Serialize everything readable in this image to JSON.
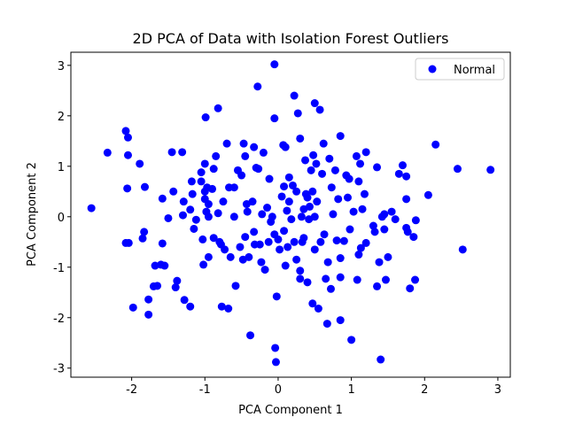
{
  "chart_data": {
    "type": "scatter",
    "title": "2D PCA of Data with Isolation Forest Outliers",
    "x_label": "PCA Component 1",
    "y_label": "PCA Component 2",
    "xlim": [
      -2.83,
      3.17
    ],
    "ylim": [
      -3.18,
      3.26
    ],
    "xticks": [
      -2,
      -1,
      0,
      1,
      2,
      3
    ],
    "yticks": [
      -3,
      -2,
      -1,
      0,
      1,
      2,
      3
    ],
    "legend": "upper right",
    "series": [
      {
        "name": "Normal",
        "color": "#0000ff",
        "x": [
          -2.55,
          -2.33,
          -2.08,
          -2.05,
          -2.05,
          -1.89,
          -2.06,
          -1.82,
          -2.08,
          -2.04,
          -1.98,
          -1.83,
          -1.85,
          -1.77,
          -1.77,
          -1.68,
          -1.7,
          -1.65,
          -1.6,
          -1.55,
          -1.58,
          -1.58,
          -1.5,
          -1.45,
          -1.43,
          -1.38,
          -1.4,
          -1.31,
          -1.3,
          -1.29,
          -1.28,
          -1.2,
          -1.2,
          -1.18,
          -1.17,
          -1.15,
          -1.12,
          -1.05,
          -1.05,
          -1.03,
          -1.02,
          -1.0,
          -1.0,
          -1.0,
          -0.99,
          -0.98,
          -0.97,
          -0.95,
          -0.95,
          -0.95,
          -0.9,
          -0.88,
          -0.88,
          -0.85,
          -0.82,
          -0.82,
          -0.8,
          -0.78,
          -0.77,
          -0.75,
          -0.73,
          -0.7,
          -0.68,
          -0.67,
          -0.65,
          -0.6,
          -0.6,
          -0.58,
          -0.55,
          -0.52,
          -0.5,
          -0.48,
          -0.47,
          -0.45,
          -0.45,
          -0.43,
          -0.42,
          -0.4,
          -0.38,
          -0.35,
          -0.33,
          -0.33,
          -0.32,
          -0.3,
          -0.28,
          -0.27,
          -0.25,
          -0.23,
          -0.22,
          -0.2,
          -0.18,
          -0.15,
          -0.13,
          -0.12,
          -0.1,
          -0.08,
          -0.05,
          -0.05,
          -0.05,
          -0.04,
          -0.03,
          -0.02,
          0.0,
          0.02,
          0.05,
          0.07,
          0.08,
          0.08,
          0.1,
          0.1,
          0.12,
          0.13,
          0.15,
          0.15,
          0.18,
          0.2,
          0.22,
          0.22,
          0.25,
          0.25,
          0.27,
          0.3,
          0.3,
          0.3,
          0.32,
          0.33,
          0.35,
          0.35,
          0.37,
          0.38,
          0.4,
          0.4,
          0.42,
          0.43,
          0.45,
          0.47,
          0.47,
          0.48,
          0.5,
          0.5,
          0.5,
          0.52,
          0.53,
          0.55,
          0.57,
          0.58,
          0.6,
          0.62,
          0.63,
          0.65,
          0.67,
          0.68,
          0.7,
          0.72,
          0.73,
          0.75,
          0.78,
          0.8,
          0.82,
          0.85,
          0.85,
          0.85,
          0.85,
          0.9,
          0.93,
          0.95,
          0.97,
          0.98,
          1.0,
          1.03,
          1.07,
          1.08,
          1.1,
          1.1,
          1.12,
          1.13,
          1.15,
          1.18,
          1.2,
          1.2,
          1.3,
          1.32,
          1.35,
          1.35,
          1.38,
          1.4,
          1.42,
          1.45,
          1.45,
          1.47,
          1.5,
          1.55,
          1.6,
          1.65,
          1.7,
          1.75,
          1.75,
          1.75,
          1.77,
          1.8,
          1.85,
          1.87,
          1.88,
          2.05,
          2.15,
          2.45,
          2.52,
          2.9
        ],
        "values": [
          0.17,
          1.27,
          1.7,
          1.57,
          1.22,
          1.05,
          0.56,
          0.59,
          -0.52,
          -0.52,
          -1.8,
          -0.3,
          -0.43,
          -1.64,
          -1.94,
          -0.97,
          -1.38,
          -1.37,
          -0.95,
          -0.97,
          -0.53,
          0.36,
          -0.03,
          1.28,
          0.5,
          -1.27,
          -1.4,
          1.28,
          0.03,
          0.3,
          -1.65,
          -1.78,
          0.14,
          0.7,
          0.45,
          -0.24,
          -0.06,
          0.88,
          0.7,
          -0.45,
          -0.95,
          0.5,
          0.35,
          1.05,
          1.97,
          0.1,
          0.58,
          -0.8,
          0.0,
          0.25,
          0.55,
          -0.42,
          0.95,
          1.2,
          2.15,
          0.07,
          -0.5,
          -0.55,
          -1.78,
          0.3,
          -0.65,
          1.45,
          -1.82,
          0.58,
          -0.8,
          0.58,
          0.0,
          -1.37,
          0.92,
          -0.6,
          0.82,
          -0.85,
          1.45,
          1.2,
          -0.4,
          0.25,
          0.1,
          -0.8,
          -2.35,
          0.3,
          -0.3,
          1.38,
          -0.55,
          0.97,
          2.58,
          0.95,
          -0.55,
          -0.9,
          0.05,
          1.27,
          -1.05,
          0.18,
          -0.5,
          0.75,
          -0.1,
          0.0,
          -0.35,
          1.95,
          3.02,
          -2.6,
          -2.88,
          -1.58,
          -0.45,
          -0.65,
          0.4,
          1.42,
          0.6,
          -0.28,
          -0.97,
          1.38,
          0.12,
          -0.6,
          0.3,
          0.78,
          -0.05,
          0.62,
          -0.5,
          2.4,
          0.5,
          -0.85,
          2.05,
          -1.07,
          -1.23,
          1.55,
          0.0,
          -0.5,
          0.15,
          -0.42,
          1.12,
          0.45,
          -1.3,
          0.38,
          -0.05,
          0.2,
          0.92,
          -1.72,
          0.5,
          1.22,
          0.0,
          -0.65,
          2.25,
          1.05,
          0.3,
          -1.82,
          2.12,
          -0.5,
          0.85,
          1.45,
          -0.35,
          -1.23,
          -2.12,
          -0.9,
          1.15,
          -1.43,
          0.58,
          0.05,
          0.92,
          -0.47,
          0.35,
          1.6,
          -0.82,
          -1.2,
          -2.05,
          -0.48,
          0.82,
          0.38,
          0.75,
          -0.25,
          -2.44,
          0.1,
          1.2,
          -1.25,
          0.7,
          -0.75,
          1.05,
          -0.62,
          0.15,
          0.45,
          1.28,
          -0.52,
          -0.18,
          -0.3,
          -1.38,
          0.98,
          -0.9,
          -2.83,
          0.0,
          0.05,
          -0.25,
          -1.25,
          -0.8,
          0.1,
          -0.05,
          0.85,
          1.02,
          0.8,
          0.35,
          -0.22,
          -0.3,
          -1.42,
          -0.4,
          -1.25,
          -0.07,
          0.43,
          1.43,
          0.95,
          -0.65,
          0.93
        ]
      }
    ]
  }
}
